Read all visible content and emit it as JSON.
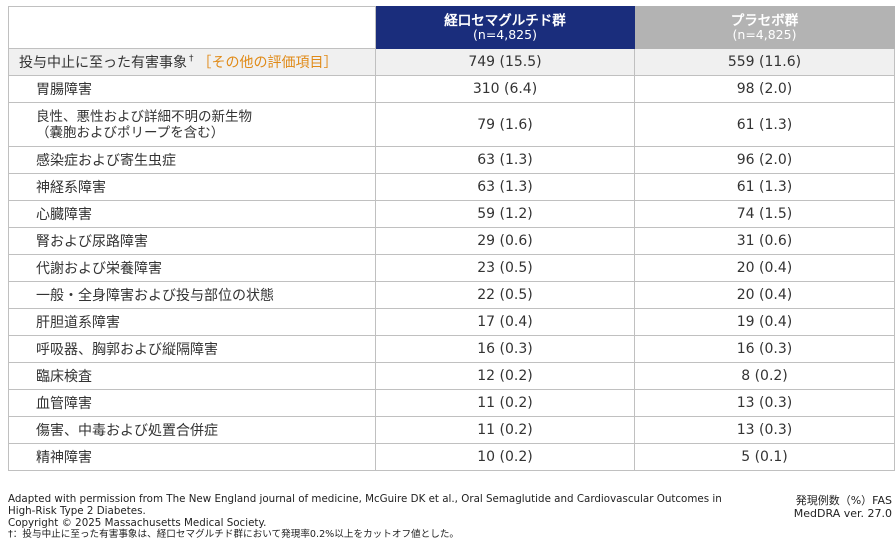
{
  "header": {
    "oral": {
      "name": "経口セマグルチド群",
      "n": "(n=4,825)"
    },
    "placebo": {
      "name": "プラセボ群",
      "n": "(n=4,825)"
    }
  },
  "total_row": {
    "label": "投与中止に至った有害事象",
    "dagger": "†",
    "other": "［その他の評価項目］",
    "oral": "749 (15.5)",
    "placebo": "559 (11.6)"
  },
  "rows": [
    {
      "label": "胃腸障害",
      "oral": "310 (6.4)",
      "placebo": "98 (2.0)"
    },
    {
      "label": "良性、悪性および詳細不明の新生物",
      "label2": "（嚢胞およびポリープを含む）",
      "oral": "79 (1.6)",
      "placebo": "61 (1.3)"
    },
    {
      "label": "感染症および寄生虫症",
      "oral": "63 (1.3)",
      "placebo": "96 (2.0)"
    },
    {
      "label": "神経系障害",
      "oral": "63 (1.3)",
      "placebo": "61 (1.3)"
    },
    {
      "label": "心臓障害",
      "oral": "59 (1.2)",
      "placebo": "74 (1.5)"
    },
    {
      "label": "腎および尿路障害",
      "oral": "29 (0.6)",
      "placebo": "31 (0.6)"
    },
    {
      "label": "代謝および栄養障害",
      "oral": "23 (0.5)",
      "placebo": "20 (0.4)"
    },
    {
      "label": "一般・全身障害および投与部位の状態",
      "oral": "22 (0.5)",
      "placebo": "20 (0.4)"
    },
    {
      "label": "肝胆道系障害",
      "oral": "17 (0.4)",
      "placebo": "19 (0.4)"
    },
    {
      "label": "呼吸器、胸郭および縦隔障害",
      "oral": "16 (0.3)",
      "placebo": "16 (0.3)"
    },
    {
      "label": "臨床検査",
      "oral": "12 (0.2)",
      "placebo": "8 (0.2)"
    },
    {
      "label": "血管障害",
      "oral": "11 (0.2)",
      "placebo": "13 (0.3)"
    },
    {
      "label": "傷害、中毒および処置合併症",
      "oral": "11 (0.2)",
      "placebo": "13 (0.3)"
    },
    {
      "label": "精神障害",
      "oral": "10 (0.2)",
      "placebo": "5 (0.1)"
    }
  ],
  "footer": {
    "source_line1": "Adapted with permission from The New England journal of medicine, McGuire DK et al., Oral Semaglutide and Cardiovascular Outcomes in",
    "source_line2": "High-Risk Type 2 Diabetes.",
    "copyright": "Copyright © 2025 Massachusetts Medical Society.",
    "note": "†：投与中止に至った有害事象は、経口セマグルチド群において発現率0.2%以上をカットオフ値とした。",
    "right_line1": "発現例数（%）FAS",
    "right_line2": "MedDRA ver. 27.0"
  },
  "colors": {
    "oral_header": "#1a2d7c",
    "placebo_header": "#b3b3b3",
    "other_text": "#e08a17"
  }
}
